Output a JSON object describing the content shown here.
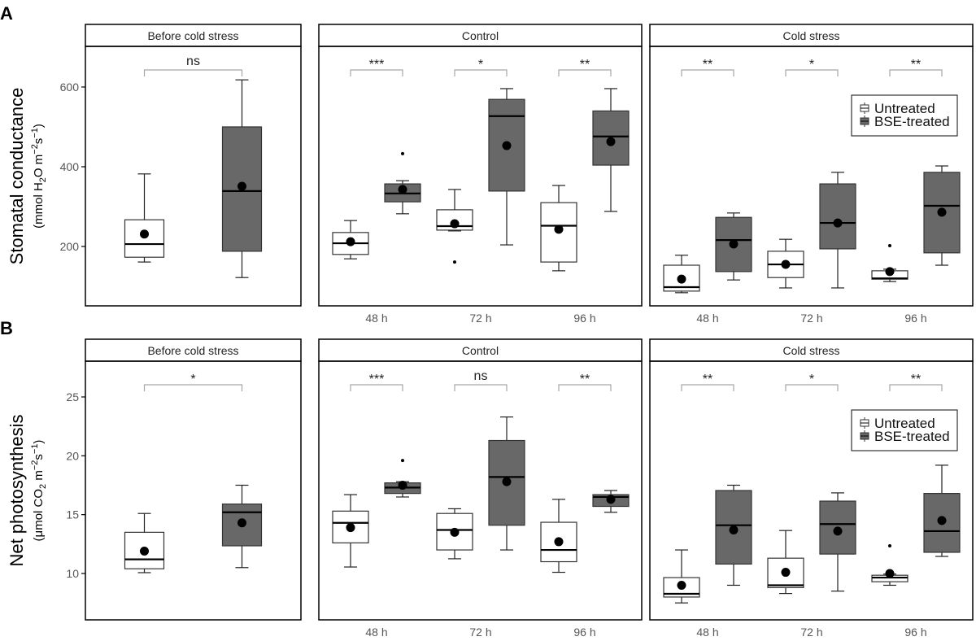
{
  "colors": {
    "untreated": "#ffffff",
    "bse_treated": "#686868",
    "bracket": "#a6a6a6",
    "tick_text": "#555555"
  },
  "legend": {
    "placement": "top-right of Cold stress facet",
    "items": [
      "Untreated",
      "BSE-treated"
    ]
  },
  "chart_data": [
    {
      "panel_label": "A",
      "type": "box",
      "ylabel": "Stomatal conductance",
      "ylabel_units": [
        {
          "t": "(mmol  H"
        },
        {
          "t": "2",
          "k": "sub"
        },
        {
          "t": "O m"
        },
        {
          "t": "−2",
          "k": "sup"
        },
        {
          "t": "s"
        },
        {
          "t": "−1",
          "k": "sup"
        },
        {
          "t": ")"
        }
      ],
      "yticks": [
        200,
        400,
        600
      ],
      "ylim": [
        51,
        702
      ],
      "grid": false,
      "facets": [
        {
          "title": "Before cold stress",
          "groups": [
            {
              "x_label": "",
              "significance": "ns",
              "untreated": {
                "min": 161,
                "q1": 173,
                "median": 206,
                "q3": 267,
                "max": 382,
                "mean": 231,
                "outliers": []
              },
              "bse": {
                "min": 122,
                "q1": 188,
                "median": 339,
                "q3": 500,
                "max": 618,
                "mean": 351,
                "outliers": []
              }
            }
          ]
        },
        {
          "title": "Control",
          "groups": [
            {
              "x_label": "48 h",
              "significance": "***",
              "untreated": {
                "min": 169,
                "q1": 180,
                "median": 208,
                "q3": 235,
                "max": 265,
                "mean": 212,
                "outliers": []
              },
              "bse": {
                "min": 282,
                "q1": 312,
                "median": 333,
                "q3": 357,
                "max": 365,
                "mean": 343,
                "outliers": [
                  433
                ]
              }
            },
            {
              "x_label": "72 h",
              "significance": "*",
              "untreated": {
                "min": 239,
                "q1": 241,
                "median": 251,
                "q3": 292,
                "max": 343,
                "mean": 257,
                "outliers": [
                  161
                ]
              },
              "bse": {
                "min": 204,
                "q1": 339,
                "median": 527,
                "q3": 569,
                "max": 596,
                "mean": 453,
                "outliers": []
              }
            },
            {
              "x_label": "96 h",
              "significance": "**",
              "untreated": {
                "min": 139,
                "q1": 161,
                "median": 252,
                "q3": 310,
                "max": 353,
                "mean": 243,
                "outliers": []
              },
              "bse": {
                "min": 288,
                "q1": 404,
                "median": 476,
                "q3": 540,
                "max": 596,
                "mean": 463,
                "outliers": []
              }
            }
          ]
        },
        {
          "title": "Cold stress",
          "legend": true,
          "groups": [
            {
              "x_label": "48 h",
              "significance": "**",
              "untreated": {
                "min": 84,
                "q1": 88,
                "median": 98,
                "q3": 153,
                "max": 178,
                "mean": 118,
                "outliers": []
              },
              "bse": {
                "min": 116,
                "q1": 137,
                "median": 216,
                "q3": 273,
                "max": 284,
                "mean": 206,
                "outliers": []
              }
            },
            {
              "x_label": "72 h",
              "significance": "*",
              "untreated": {
                "min": 96,
                "q1": 122,
                "median": 155,
                "q3": 188,
                "max": 218,
                "mean": 155,
                "outliers": []
              },
              "bse": {
                "min": 96,
                "q1": 194,
                "median": 259,
                "q3": 357,
                "max": 386,
                "mean": 259,
                "outliers": []
              }
            },
            {
              "x_label": "96 h",
              "significance": "**",
              "untreated": {
                "min": 112,
                "q1": 118,
                "median": 120,
                "q3": 139,
                "max": 143,
                "mean": 137,
                "outliers": [
                  202
                ]
              },
              "bse": {
                "min": 153,
                "q1": 184,
                "median": 302,
                "q3": 386,
                "max": 402,
                "mean": 286,
                "outliers": []
              }
            }
          ]
        }
      ]
    },
    {
      "panel_label": "B",
      "type": "box",
      "ylabel": "Net photosynthesis",
      "ylabel_units": [
        {
          "t": "(μmol  CO"
        },
        {
          "t": "2",
          "k": "sub"
        },
        {
          "t": " m"
        },
        {
          "t": "−2",
          "k": "sup"
        },
        {
          "t": "s"
        },
        {
          "t": "−1",
          "k": "sup"
        },
        {
          "t": ")"
        }
      ],
      "yticks": [
        10,
        15,
        20,
        25
      ],
      "ylim": [
        6.06,
        28.04
      ],
      "grid": false,
      "facets": [
        {
          "title": "Before cold stress",
          "groups": [
            {
              "x_label": "",
              "significance": "*",
              "untreated": {
                "min": 10.07,
                "q1": 10.4,
                "median": 11.2,
                "q3": 13.5,
                "max": 15.1,
                "mean": 11.9,
                "outliers": []
              },
              "bse": {
                "min": 10.5,
                "q1": 12.35,
                "median": 15.2,
                "q3": 15.9,
                "max": 17.5,
                "mean": 14.3,
                "outliers": []
              }
            }
          ]
        },
        {
          "title": "Control",
          "groups": [
            {
              "x_label": "48 h",
              "significance": "***",
              "untreated": {
                "min": 10.55,
                "q1": 12.6,
                "median": 14.3,
                "q3": 15.3,
                "max": 16.7,
                "mean": 13.9,
                "outliers": []
              },
              "bse": {
                "min": 16.5,
                "q1": 16.8,
                "median": 17.3,
                "q3": 17.7,
                "max": 17.8,
                "mean": 17.5,
                "outliers": [
                  19.6
                ]
              }
            },
            {
              "x_label": "72 h",
              "significance": "ns",
              "untreated": {
                "min": 11.25,
                "q1": 12.0,
                "median": 13.7,
                "q3": 15.1,
                "max": 15.5,
                "mean": 13.5,
                "outliers": []
              },
              "bse": {
                "min": 12.0,
                "q1": 14.1,
                "median": 18.2,
                "q3": 21.3,
                "max": 23.3,
                "mean": 17.8,
                "outliers": []
              }
            },
            {
              "x_label": "96 h",
              "significance": "**",
              "untreated": {
                "min": 10.1,
                "q1": 11.0,
                "median": 12.0,
                "q3": 14.35,
                "max": 16.3,
                "mean": 12.7,
                "outliers": []
              },
              "bse": {
                "min": 15.2,
                "q1": 15.7,
                "median": 16.5,
                "q3": 16.7,
                "max": 17.05,
                "mean": 16.3,
                "outliers": []
              }
            }
          ]
        },
        {
          "title": "Cold stress",
          "legend": true,
          "groups": [
            {
              "x_label": "48 h",
              "significance": "**",
              "untreated": {
                "min": 7.5,
                "q1": 8.0,
                "median": 8.27,
                "q3": 9.65,
                "max": 12.0,
                "mean": 9.0,
                "outliers": []
              },
              "bse": {
                "min": 9.0,
                "q1": 10.8,
                "median": 14.1,
                "q3": 17.05,
                "max": 17.5,
                "mean": 13.7,
                "outliers": []
              }
            },
            {
              "x_label": "72 h",
              "significance": "*",
              "untreated": {
                "min": 8.3,
                "q1": 8.8,
                "median": 9.0,
                "q3": 11.3,
                "max": 13.65,
                "mean": 10.1,
                "outliers": []
              },
              "bse": {
                "min": 8.5,
                "q1": 11.65,
                "median": 14.2,
                "q3": 16.15,
                "max": 16.85,
                "mean": 13.6,
                "outliers": []
              }
            },
            {
              "x_label": "96 h",
              "significance": "**",
              "untreated": {
                "min": 9.0,
                "q1": 9.3,
                "median": 9.65,
                "q3": 9.85,
                "max": 9.95,
                "mean": 10.0,
                "outliers": [
                  12.35
                ]
              },
              "bse": {
                "min": 11.45,
                "q1": 11.8,
                "median": 13.6,
                "q3": 16.8,
                "max": 19.2,
                "mean": 14.5,
                "outliers": []
              }
            }
          ]
        }
      ]
    }
  ]
}
